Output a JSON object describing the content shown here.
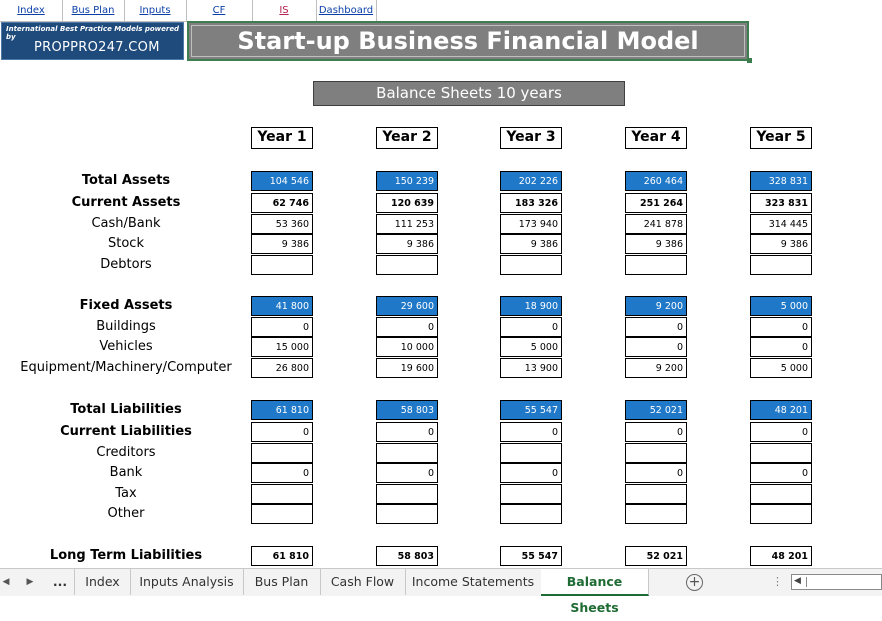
{
  "nav": [
    "Index",
    "Bus Plan",
    "Inputs",
    "CF",
    "IS",
    "Dashboard"
  ],
  "logo": {
    "tagline": "International Best Practice Models powered by",
    "brand": "PROPPRO247.COM"
  },
  "title": "Start-up Business Financial Model",
  "subtitle": "Balance Sheets 10 years",
  "years": [
    "Year 1",
    "Year 2",
    "Year 3",
    "Year 4",
    "Year 5"
  ],
  "rows": [
    {
      "label": "Total Assets",
      "bold": true,
      "style": "blue",
      "values": [
        "104 546",
        "150 239",
        "202 226",
        "260 464",
        "328 831"
      ]
    },
    {
      "label": "Current Assets",
      "bold": true,
      "style": "boldval",
      "values": [
        "62 746",
        "120 639",
        "183 326",
        "251 264",
        "323 831"
      ]
    },
    {
      "label": "Cash/Bank",
      "values": [
        "53 360",
        "111 253",
        "173 940",
        "241 878",
        "314 445"
      ]
    },
    {
      "label": "Stock",
      "values": [
        "9 386",
        "9 386",
        "9 386",
        "9 386",
        "9 386"
      ]
    },
    {
      "label": "Debtors",
      "values": [
        "",
        "",
        "",
        "",
        ""
      ]
    },
    {
      "label": "Fixed Assets",
      "bold": true,
      "style": "blue",
      "values": [
        "41 800",
        "29 600",
        "18 900",
        "9 200",
        "5 000"
      ]
    },
    {
      "label": "Buildings",
      "values": [
        "0",
        "0",
        "0",
        "0",
        "0"
      ]
    },
    {
      "label": "Vehicles",
      "values": [
        "15 000",
        "10 000",
        "5 000",
        "0",
        "0"
      ]
    },
    {
      "label": "Equipment/Machinery/Computer",
      "values": [
        "26 800",
        "19 600",
        "13 900",
        "9 200",
        "5 000"
      ]
    },
    {
      "label": "Total Liabilities",
      "bold": true,
      "style": "blue",
      "values": [
        "61 810",
        "58 803",
        "55 547",
        "52 021",
        "48 201"
      ]
    },
    {
      "label": "Current Liabilities",
      "bold": true,
      "values": [
        "0",
        "0",
        "0",
        "0",
        "0"
      ]
    },
    {
      "label": "Creditors",
      "values": [
        "",
        "",
        "",
        "",
        ""
      ]
    },
    {
      "label": "Bank",
      "values": [
        "0",
        "0",
        "0",
        "0",
        "0"
      ]
    },
    {
      "label": "Tax",
      "values": [
        "",
        "",
        "",
        "",
        ""
      ]
    },
    {
      "label": "Other",
      "values": [
        "",
        "",
        "",
        "",
        ""
      ]
    },
    {
      "label": "Long Term Liabilities",
      "bold": true,
      "style": "boldval",
      "values": [
        "61 810",
        "58 803",
        "55 547",
        "52 021",
        "48 201"
      ]
    }
  ],
  "tabs": {
    "ellipsis": "...",
    "items": [
      "Index",
      "Inputs Analysis",
      "Bus Plan",
      "Cash Flow",
      "Income Statements",
      "Balance Sheets"
    ],
    "active": "Balance Sheets"
  },
  "colors": {
    "accent_blue": "#1f78c8",
    "title_gray": "#7f7f7f",
    "active_tab": "#1f6b34",
    "link": "#0b3fa8"
  }
}
